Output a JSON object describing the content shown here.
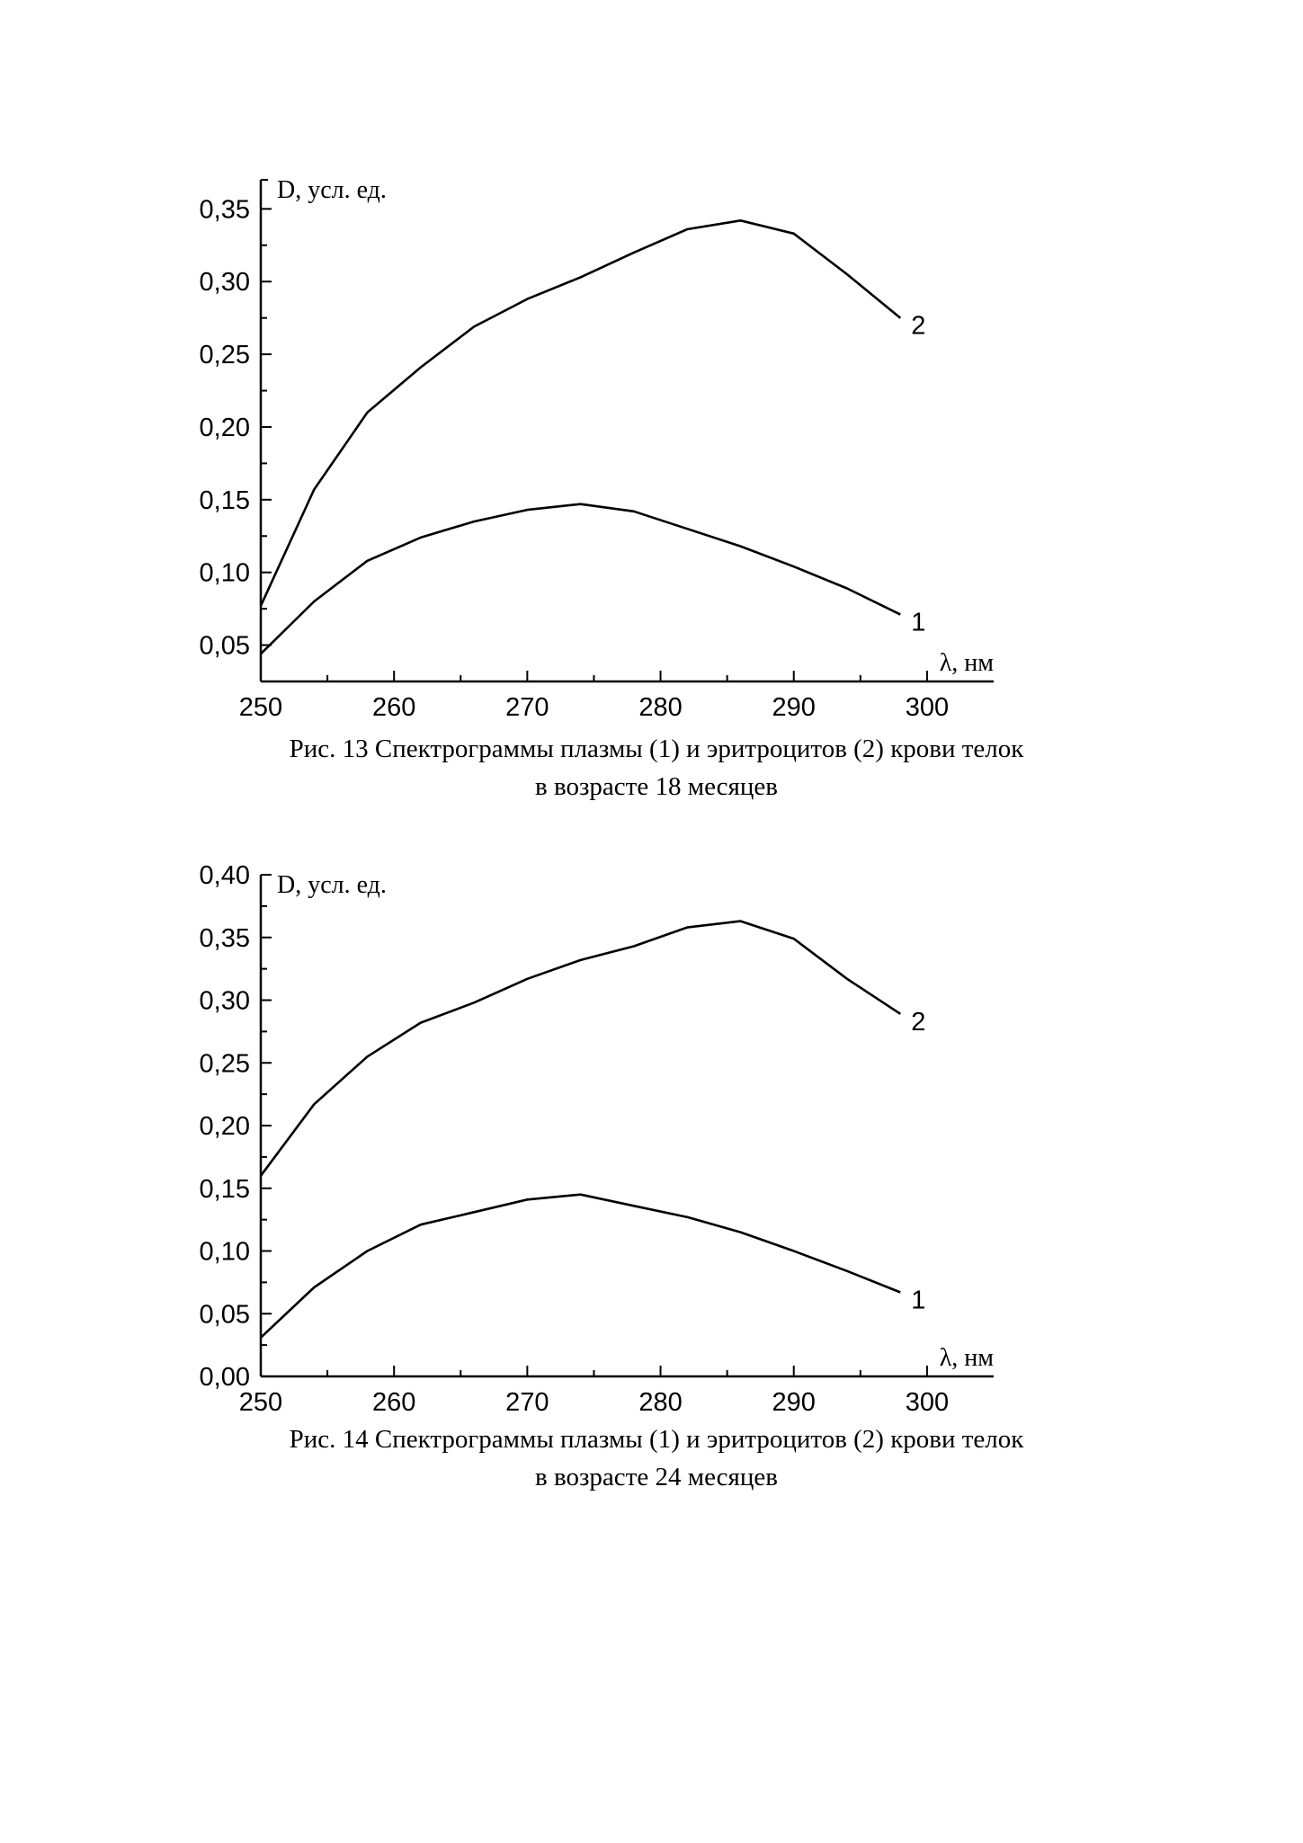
{
  "chart_data": [
    {
      "type": "line",
      "title": "",
      "ylabel": "D, усл. ед.",
      "xlabel": "λ, нм",
      "xlim": [
        250,
        305
      ],
      "ylim": [
        0.025,
        0.37
      ],
      "xticks": [
        250,
        260,
        270,
        280,
        290,
        300
      ],
      "xtick_labels": [
        "250",
        "260",
        "270",
        "280",
        "290",
        "300"
      ],
      "yticks": [
        0.05,
        0.1,
        0.15,
        0.2,
        0.25,
        0.3,
        0.35
      ],
      "ytick_labels": [
        "0,05",
        "0,10",
        "0,15",
        "0,20",
        "0,25",
        "0,30",
        "0,35"
      ],
      "x": [
        250,
        254,
        258,
        262,
        266,
        270,
        274,
        278,
        282,
        286,
        290,
        294,
        298
      ],
      "series": [
        {
          "name": "1",
          "values": [
            0.044,
            0.08,
            0.108,
            0.124,
            0.135,
            0.143,
            0.147,
            0.142,
            0.13,
            0.118,
            0.104,
            0.089,
            0.071
          ]
        },
        {
          "name": "2",
          "values": [
            0.077,
            0.157,
            0.21,
            0.241,
            0.269,
            0.288,
            0.303,
            0.32,
            0.336,
            0.342,
            0.333,
            0.305,
            0.275
          ]
        }
      ],
      "grid": false,
      "caption": [
        "Рис. 13 Спектрограммы плазмы (1) и эритроцитов (2) крови телок",
        "в возрасте 18 месяцев"
      ]
    },
    {
      "type": "line",
      "title": "",
      "ylabel": "D, усл. ед.",
      "xlabel": "λ, нм",
      "xlim": [
        250,
        305
      ],
      "ylim": [
        0.0,
        0.4
      ],
      "xticks": [
        250,
        260,
        270,
        280,
        290,
        300
      ],
      "xtick_labels": [
        "250",
        "260",
        "270",
        "280",
        "290",
        "300"
      ],
      "yticks": [
        0.0,
        0.05,
        0.1,
        0.15,
        0.2,
        0.25,
        0.3,
        0.35,
        0.4
      ],
      "ytick_labels": [
        "0,00",
        "0,05",
        "0,10",
        "0,15",
        "0,20",
        "0,25",
        "0,30",
        "0,35",
        "0,40"
      ],
      "x": [
        250,
        254,
        258,
        262,
        266,
        270,
        274,
        278,
        282,
        286,
        290,
        294,
        298
      ],
      "series": [
        {
          "name": "1",
          "values": [
            0.031,
            0.071,
            0.1,
            0.121,
            0.131,
            0.141,
            0.145,
            0.136,
            0.127,
            0.115,
            0.1,
            0.084,
            0.067
          ]
        },
        {
          "name": "2",
          "values": [
            0.16,
            0.217,
            0.255,
            0.282,
            0.298,
            0.317,
            0.332,
            0.343,
            0.358,
            0.363,
            0.349,
            0.317,
            0.289
          ]
        }
      ],
      "grid": false,
      "caption": [
        "Рис. 14 Спектрограммы плазмы (1) и эритроцитов (2) крови телок",
        "в возрасте 24 месяцев"
      ]
    }
  ]
}
